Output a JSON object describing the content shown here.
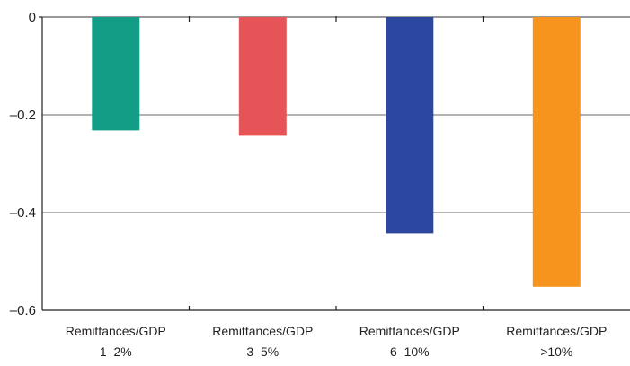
{
  "chart_data": {
    "type": "bar",
    "title": "",
    "xlabel": "",
    "ylabel": "",
    "ylim": [
      -0.6,
      0
    ],
    "yticks": [
      {
        "value": 0,
        "label": "0"
      },
      {
        "value": -0.2,
        "label": "–0.2"
      },
      {
        "value": -0.4,
        "label": "–0.4"
      },
      {
        "value": -0.6,
        "label": "–0.6"
      }
    ],
    "categories": [
      {
        "line1": "Remittances/GDP",
        "line2": "1–2%"
      },
      {
        "line1": "Remittances/GDP",
        "line2": "3–5%"
      },
      {
        "line1": "Remittances/GDP",
        "line2": "6–10%"
      },
      {
        "line1": "Remittances/GDP",
        "line2": ">10%"
      }
    ],
    "values": [
      -0.232,
      -0.243,
      -0.443,
      -0.552
    ],
    "colors": [
      "#139d87",
      "#e65457",
      "#2c479f",
      "#f7941d"
    ],
    "grid": true,
    "legend": "none"
  }
}
